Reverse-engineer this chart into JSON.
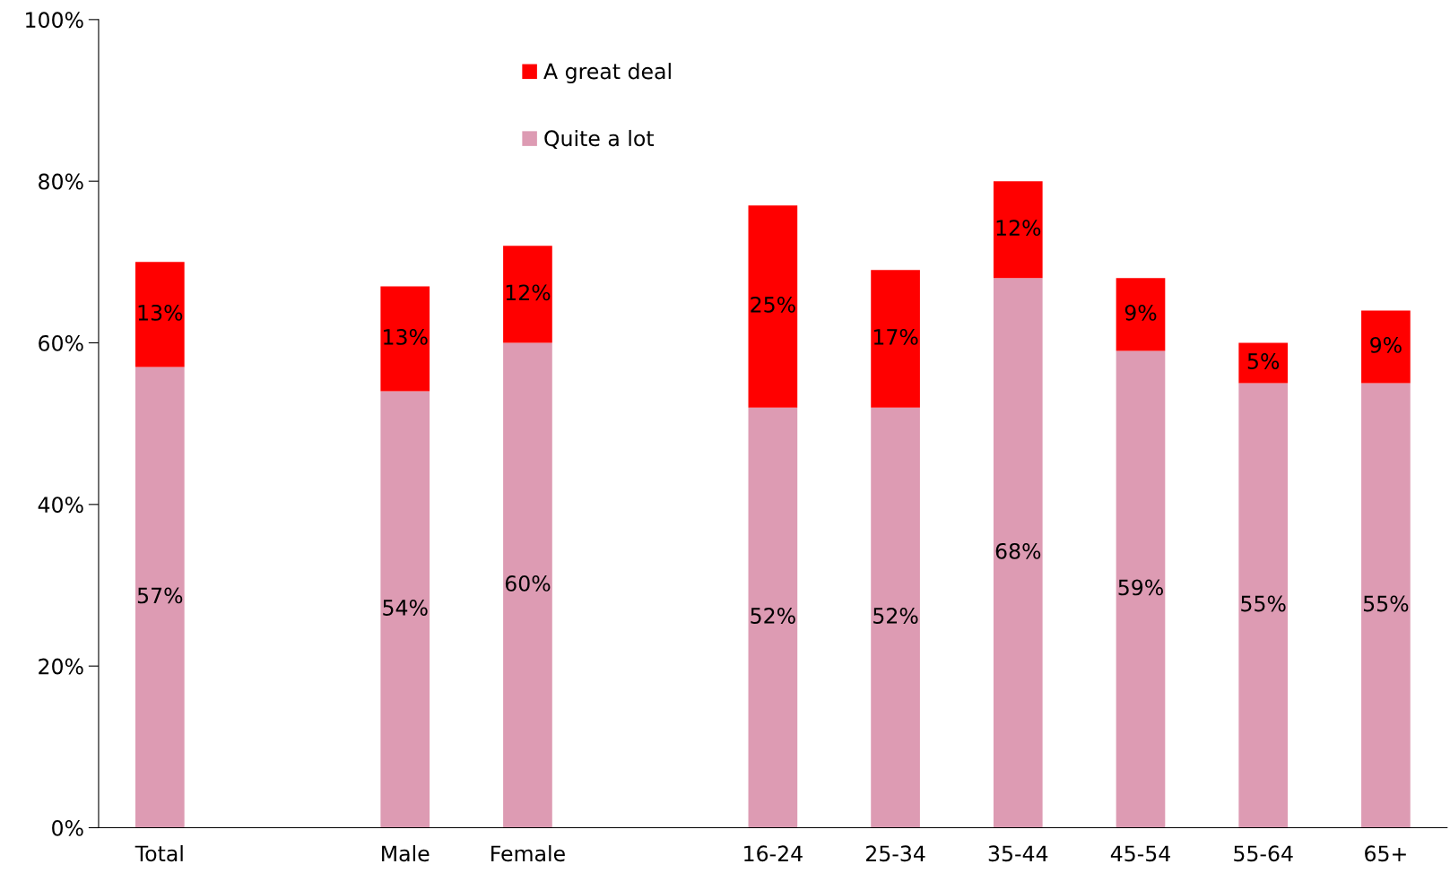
{
  "chart_data": {
    "type": "bar",
    "stacked": true,
    "categories": [
      "Total",
      null,
      "Male",
      "Female",
      null,
      "16-24",
      "25-34",
      "35-44",
      "45-54",
      "55-64",
      "65+"
    ],
    "series": [
      {
        "name": "Quite a lot",
        "color": "#dd9bb3",
        "values": [
          57,
          null,
          54,
          60,
          null,
          52,
          52,
          68,
          59,
          55,
          55
        ],
        "value_labels": [
          "57%",
          null,
          "54%",
          "60%",
          null,
          "52%",
          "52%",
          "68%",
          "59%",
          "55%",
          "55%"
        ]
      },
      {
        "name": "A great deal",
        "color": "#ff0000",
        "values": [
          13,
          null,
          13,
          12,
          null,
          25,
          17,
          12,
          9,
          5,
          9
        ],
        "value_labels": [
          "13%",
          null,
          "13%",
          "12%",
          null,
          "25%",
          "17%",
          "12%",
          "9%",
          "5%",
          "9%"
        ]
      }
    ],
    "ylim": [
      0,
      100
    ],
    "yticks": [
      {
        "value": 0,
        "label": "0%"
      },
      {
        "value": 20,
        "label": "20%"
      },
      {
        "value": 40,
        "label": "40%"
      },
      {
        "value": 60,
        "label": "60%"
      },
      {
        "value": 80,
        "label": "80%"
      },
      {
        "value": 100,
        "label": "100%"
      }
    ],
    "grid": false,
    "legend": "top"
  }
}
